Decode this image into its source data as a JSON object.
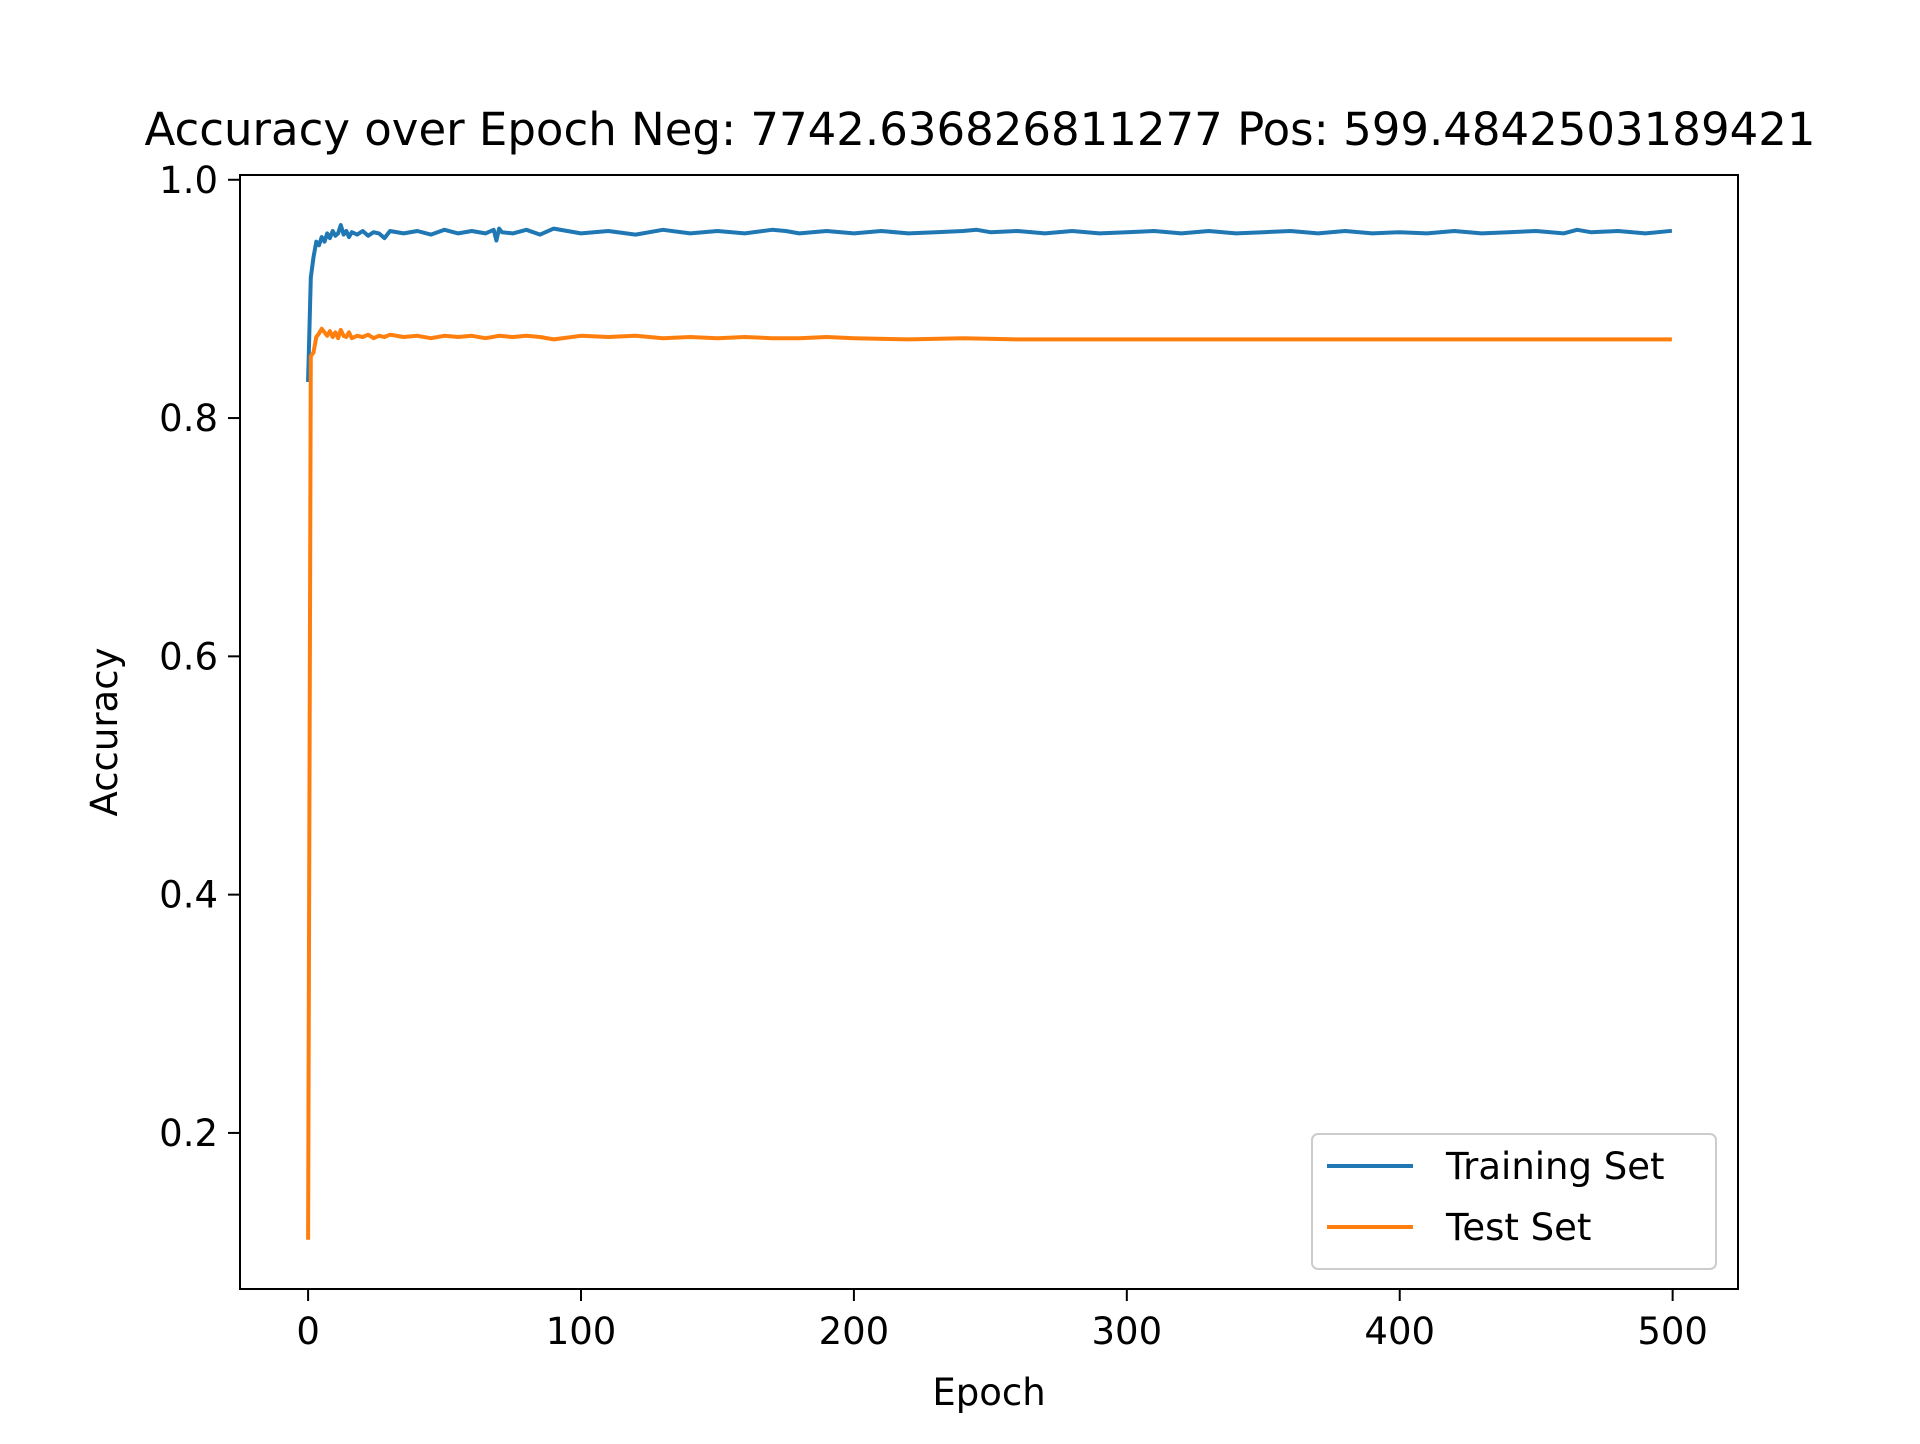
{
  "chart_data": {
    "type": "line",
    "title": "Accuracy over Epoch Neg: 7742.636826811277 Pos: 599.4842503189421",
    "xlabel": "Epoch",
    "ylabel": "Accuracy",
    "xlim": [
      -24.95,
      523.95
    ],
    "ylim": [
      0.069,
      1.004
    ],
    "xticks": [
      0,
      100,
      200,
      300,
      400,
      500
    ],
    "xtick_labels": [
      "0",
      "100",
      "200",
      "300",
      "400",
      "500"
    ],
    "yticks": [
      0.2,
      0.4,
      0.6,
      0.8,
      1.0
    ],
    "ytick_labels": [
      "0.2",
      "0.4",
      "0.6",
      "0.8",
      "1.0"
    ],
    "grid": false,
    "legend_position": "lower-right",
    "series": [
      {
        "name": "Training Set",
        "color": "#1f77b4",
        "x": [
          0,
          1,
          2,
          3,
          4,
          5,
          6,
          7,
          8,
          9,
          10,
          11,
          12,
          13,
          14,
          15,
          16,
          18,
          20,
          22,
          24,
          26,
          28,
          30,
          35,
          40,
          45,
          50,
          55,
          60,
          65,
          68,
          69,
          70,
          71,
          75,
          80,
          85,
          90,
          100,
          110,
          120,
          130,
          140,
          150,
          160,
          170,
          175,
          180,
          190,
          200,
          210,
          220,
          230,
          240,
          245,
          250,
          260,
          270,
          280,
          290,
          300,
          310,
          320,
          330,
          340,
          350,
          360,
          370,
          380,
          390,
          400,
          410,
          420,
          430,
          440,
          450,
          460,
          465,
          470,
          480,
          490,
          499
        ],
        "values": [
          0.832,
          0.918,
          0.935,
          0.948,
          0.945,
          0.952,
          0.948,
          0.955,
          0.951,
          0.957,
          0.953,
          0.955,
          0.962,
          0.954,
          0.957,
          0.952,
          0.956,
          0.954,
          0.957,
          0.953,
          0.956,
          0.955,
          0.951,
          0.957,
          0.955,
          0.957,
          0.954,
          0.958,
          0.955,
          0.957,
          0.955,
          0.958,
          0.949,
          0.959,
          0.956,
          0.955,
          0.958,
          0.954,
          0.959,
          0.955,
          0.957,
          0.954,
          0.958,
          0.955,
          0.957,
          0.955,
          0.958,
          0.957,
          0.955,
          0.957,
          0.955,
          0.957,
          0.955,
          0.956,
          0.957,
          0.958,
          0.956,
          0.957,
          0.955,
          0.957,
          0.955,
          0.956,
          0.957,
          0.955,
          0.957,
          0.955,
          0.956,
          0.957,
          0.955,
          0.957,
          0.955,
          0.956,
          0.955,
          0.957,
          0.955,
          0.956,
          0.957,
          0.955,
          0.958,
          0.956,
          0.957,
          0.955,
          0.957
        ]
      },
      {
        "name": "Test Set",
        "color": "#ff7f0e",
        "x": [
          0,
          1,
          2,
          3,
          4,
          5,
          6,
          7,
          8,
          9,
          10,
          11,
          12,
          13,
          14,
          15,
          16,
          18,
          20,
          22,
          24,
          26,
          28,
          30,
          35,
          40,
          45,
          50,
          55,
          60,
          65,
          70,
          75,
          80,
          85,
          90,
          100,
          110,
          120,
          130,
          140,
          150,
          160,
          170,
          180,
          190,
          200,
          220,
          240,
          260,
          280,
          300,
          320,
          340,
          360,
          380,
          400,
          420,
          440,
          460,
          480,
          499
        ],
        "values": [
          0.112,
          0.852,
          0.855,
          0.868,
          0.871,
          0.875,
          0.872,
          0.869,
          0.873,
          0.868,
          0.872,
          0.867,
          0.874,
          0.869,
          0.868,
          0.872,
          0.867,
          0.869,
          0.868,
          0.87,
          0.867,
          0.869,
          0.868,
          0.87,
          0.868,
          0.869,
          0.867,
          0.869,
          0.868,
          0.869,
          0.867,
          0.869,
          0.868,
          0.869,
          0.868,
          0.866,
          0.869,
          0.868,
          0.869,
          0.867,
          0.868,
          0.867,
          0.868,
          0.867,
          0.867,
          0.868,
          0.867,
          0.866,
          0.867,
          0.866,
          0.866,
          0.866,
          0.866,
          0.866,
          0.866,
          0.866,
          0.866,
          0.866,
          0.866,
          0.866,
          0.866,
          0.866
        ]
      }
    ]
  }
}
